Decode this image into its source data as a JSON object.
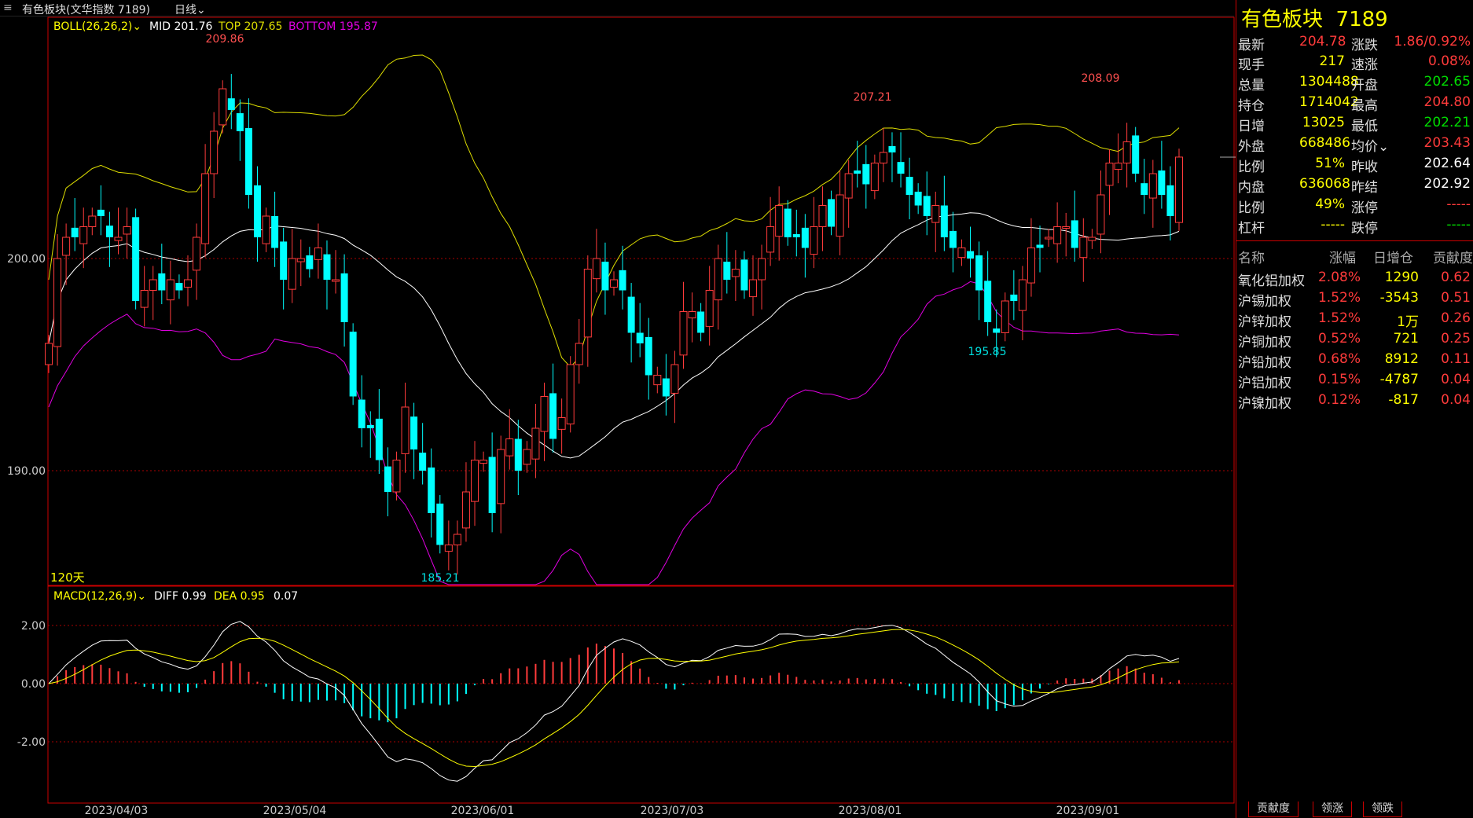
{
  "header": {
    "title": "有色板块(文华指数  7189)",
    "period": "日线",
    "period_chevron": "chevron-down-icon"
  },
  "main_chart": {
    "indicator_label": "BOLL(26,26,2)",
    "mid_label": "MID 201.76",
    "top_label": "TOP 207.65",
    "bottom_label": "BOTTOM 195.87",
    "y_ticks": [
      "200.00",
      "190.00"
    ],
    "days_label": "120天",
    "high_labels": [
      "209.86",
      "207.21",
      "208.09"
    ],
    "low_labels": [
      "185.21",
      "195.85"
    ]
  },
  "macd_chart": {
    "indicator_label": "MACD(12,26,9)",
    "diff_label": "DIFF 0.99",
    "dea_label": "DEA 0.95",
    "macd_value": "0.07",
    "y_ticks": [
      "2.00",
      "0.00",
      "-2.00"
    ]
  },
  "x_axis": [
    "2023/04/03",
    "2023/05/04",
    "2023/06/01",
    "2023/07/03",
    "2023/08/01",
    "2023/09/01"
  ],
  "colors": {
    "up": "#ff3b3b",
    "down": "#00ffff",
    "mid": "#ffffff",
    "top": "#dddd00",
    "bottom": "#e000e0"
  },
  "chart_data": {
    "type": "candlestick",
    "closes": [
      196,
      200,
      201,
      201,
      201.5,
      202,
      202,
      201,
      201,
      201.5,
      198,
      198.5,
      199,
      198.5,
      199,
      198.5,
      199,
      201,
      204,
      206,
      208,
      207,
      206,
      203,
      201,
      202,
      200.5,
      199,
      200,
      200,
      199.5,
      200.5,
      199,
      199,
      197,
      193.5,
      192,
      192,
      190.5,
      189,
      190.5,
      193,
      191,
      190,
      188,
      186.5,
      186.5,
      187,
      189,
      190.5,
      190.5,
      188,
      191,
      191.5,
      190,
      191,
      192,
      193.5,
      191.5,
      192.5,
      195,
      196,
      199.5,
      200,
      198.5,
      199,
      198.5,
      196.5,
      196,
      194.5,
      194.5,
      193.5,
      195,
      197.5,
      197.5,
      196.5,
      198.5,
      200,
      199,
      199.5,
      198.5,
      199,
      200,
      201.5,
      202.5,
      201,
      201,
      200.5,
      201.5,
      202.5,
      201.5,
      203,
      204,
      204,
      203.5,
      204.5,
      205,
      205,
      204,
      203,
      202.5,
      202,
      202.5,
      201,
      200.5,
      200.5,
      200,
      198.5,
      197,
      196.5,
      198,
      198,
      199,
      200.5,
      200.5,
      201,
      201.5,
      201.5,
      200.5,
      201,
      201,
      203,
      204.5,
      204.5,
      205.5,
      204,
      203,
      204,
      203,
      202,
      204.78
    ]
  }
}
